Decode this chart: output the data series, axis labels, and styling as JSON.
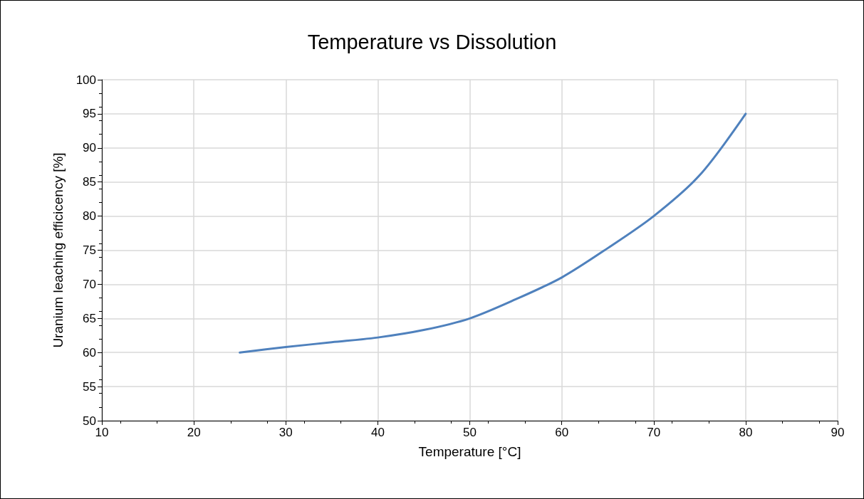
{
  "chart_data": {
    "type": "line",
    "title": "Temperature vs Dissolution",
    "xlabel": "Temperature [°C]",
    "ylabel": "Uranium leaching efficicency [%]",
    "x": [
      25,
      30,
      35,
      40,
      45,
      50,
      55,
      60,
      65,
      70,
      75,
      80
    ],
    "series": [
      {
        "color": "#4f81bd",
        "values": [
          60,
          60.8,
          61.5,
          62.2,
          63.3,
          65,
          67.8,
          71,
          75.3,
          80,
          86,
          95
        ]
      }
    ],
    "xlim": [
      10,
      90
    ],
    "xticks": [
      10,
      20,
      30,
      40,
      50,
      60,
      70,
      80,
      90
    ],
    "ylim": [
      50,
      100
    ],
    "yticks": [
      50,
      55,
      60,
      65,
      70,
      75,
      80,
      85,
      90,
      95,
      100
    ],
    "grid": true,
    "marker": "none",
    "line_style": "solid"
  }
}
